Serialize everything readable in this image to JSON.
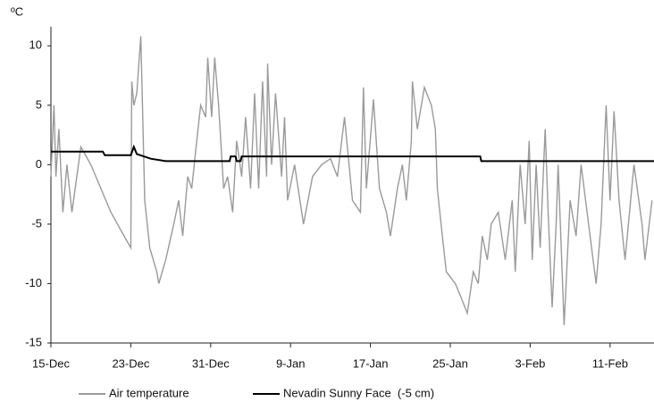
{
  "chart_data": {
    "type": "line",
    "y_unit": "ºC",
    "xlim": [
      0,
      60.4
    ],
    "xticks": [
      {
        "value": 0,
        "label": "15-Dec"
      },
      {
        "value": 8,
        "label": "23-Dec"
      },
      {
        "value": 16,
        "label": "31-Dec"
      },
      {
        "value": 24,
        "label": "9-Jan"
      },
      {
        "value": 32,
        "label": "17-Jan"
      },
      {
        "value": 40,
        "label": "25-Jan"
      },
      {
        "value": 48,
        "label": "3-Feb"
      },
      {
        "value": 56,
        "label": "11-Feb"
      }
    ],
    "ylim": [
      -15,
      11.6
    ],
    "yticks": [
      -15,
      -10,
      -5,
      0,
      5,
      10
    ],
    "grid": false,
    "series": [
      {
        "name": "Air temperature",
        "color": "#9a9a9a",
        "x": [
          0,
          0.3,
          0.5,
          0.8,
          1.2,
          1.6,
          2.1,
          3.0,
          4.0,
          5.0,
          6.0,
          7.0,
          8.0,
          8.1,
          8.3,
          8.6,
          9.0,
          9.4,
          9.9,
          10.6,
          10.8,
          11.5,
          12.3,
          12.8,
          13.2,
          13.7,
          14.1,
          14.6,
          15.0,
          15.5,
          15.7,
          16.1,
          16.4,
          16.8,
          17.3,
          17.7,
          18.2,
          18.6,
          19.1,
          19.5,
          20.0,
          20.4,
          20.8,
          21.2,
          21.6,
          21.7,
          22.1,
          22.5,
          23.1,
          23.4,
          23.7,
          24.4,
          25.3,
          26.2,
          27.1,
          28.0,
          28.7,
          29.4,
          30.2,
          31.0,
          31.3,
          31.6,
          32.3,
          32.9,
          33.6,
          34.0,
          34.7,
          35.2,
          35.6,
          36.1,
          36.2,
          36.7,
          37.4,
          38.1,
          38.5,
          38.7,
          39.2,
          39.6,
          40.5,
          41.0,
          41.7,
          42.3,
          42.8,
          43.2,
          43.7,
          44.1,
          44.8,
          45.5,
          46.2,
          46.5,
          47.0,
          47.5,
          47.9,
          48.2,
          48.6,
          49.0,
          49.5,
          49.8,
          50.2,
          50.6,
          50.8,
          51.4,
          52.0,
          52.6,
          53.1,
          53.7,
          54.6,
          55.1,
          55.6,
          56.0,
          56.4,
          56.9,
          57.5,
          58.4,
          59.2,
          59.5,
          60.2
        ],
        "values": [
          -1,
          5,
          -1,
          3,
          -4,
          0,
          -4,
          1.5,
          0,
          -2,
          -4,
          -5.5,
          -7,
          7,
          5,
          6,
          10.8,
          -3,
          -7,
          -9,
          -10,
          -8,
          -5,
          -3,
          -6,
          -1,
          -2,
          2,
          5,
          4,
          9,
          4,
          9,
          5,
          -2,
          -1,
          -4,
          2,
          -1,
          4,
          -2,
          6,
          -2,
          7,
          -1,
          8.5,
          0,
          6,
          -1,
          4,
          -3,
          0,
          -5,
          -1,
          0,
          0.5,
          -1,
          4,
          -3,
          -4,
          6.5,
          -2,
          5.5,
          -2,
          -4,
          -6,
          -2,
          0,
          -3,
          2,
          7,
          3,
          6.5,
          5,
          3,
          -2,
          -6,
          -9,
          -10,
          -11,
          -12.5,
          -9,
          -10,
          -6,
          -8,
          -5,
          -4,
          -8,
          -3,
          -9,
          0,
          -5,
          2,
          -8,
          0,
          -7,
          3,
          -4,
          -12,
          -5,
          0,
          -13.5,
          -3,
          -6,
          0,
          -4,
          -10,
          -5,
          5,
          -3,
          4.5,
          -3,
          -8,
          0,
          -5,
          -8,
          -3
        ]
      },
      {
        "name": "Nevadin Sunny Face  (-5 cm)",
        "color": "#000000",
        "x": [
          0,
          5.2,
          5.4,
          8.0,
          8.3,
          8.6,
          10.0,
          11.5,
          17.9,
          18.0,
          18.5,
          18.6,
          19.0,
          19.1,
          43.0,
          43.1,
          60.4
        ],
        "values": [
          1.1,
          1.1,
          0.8,
          0.8,
          1.5,
          0.9,
          0.5,
          0.3,
          0.3,
          0.7,
          0.7,
          0.3,
          0.3,
          0.7,
          0.7,
          0.3,
          0.3
        ]
      }
    ]
  }
}
